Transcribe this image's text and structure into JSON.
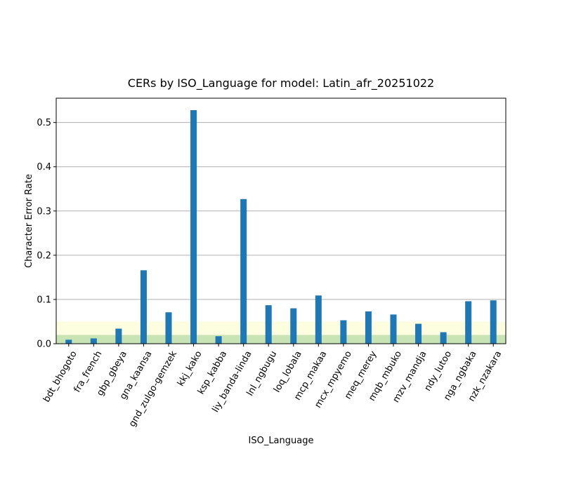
{
  "chart_data": {
    "type": "bar",
    "title": "CERs by ISO_Language for model: Latin_afr_20251022",
    "xlabel": "ISO_Language",
    "ylabel": "Character Error Rate",
    "ylim": [
      0,
      0.555
    ],
    "yticks": [
      0.0,
      0.1,
      0.2,
      0.3,
      0.4,
      0.5
    ],
    "ytick_labels": [
      "0.0",
      "0.1",
      "0.2",
      "0.3",
      "0.4",
      "0.5"
    ],
    "grid": "horizontal",
    "categories": [
      "bdt_bhogoto",
      "fra_french",
      "gbp_gbeya",
      "gna_kaansa",
      "gnd_zulgo-gemzek",
      "kkj_kako",
      "ksp_kabba",
      "liy_banda-linda",
      "lnl_ngbugu",
      "loq_lobala",
      "mcp_makaa",
      "mcx_mpyemo",
      "meq_merey",
      "mqb_mbuko",
      "mzv_mandja",
      "ndy_lutoo",
      "nga_ngbaka",
      "nzk_nzakara"
    ],
    "values": [
      0.009,
      0.012,
      0.034,
      0.166,
      0.071,
      0.528,
      0.017,
      0.327,
      0.087,
      0.08,
      0.109,
      0.053,
      0.073,
      0.066,
      0.045,
      0.026,
      0.096,
      0.098
    ],
    "bands": [
      {
        "from": 0.0,
        "to": 0.02,
        "color": "#c9e4b4"
      },
      {
        "from": 0.02,
        "to": 0.05,
        "color": "#fdfde0"
      }
    ],
    "bar_color": "#1f77b4"
  }
}
